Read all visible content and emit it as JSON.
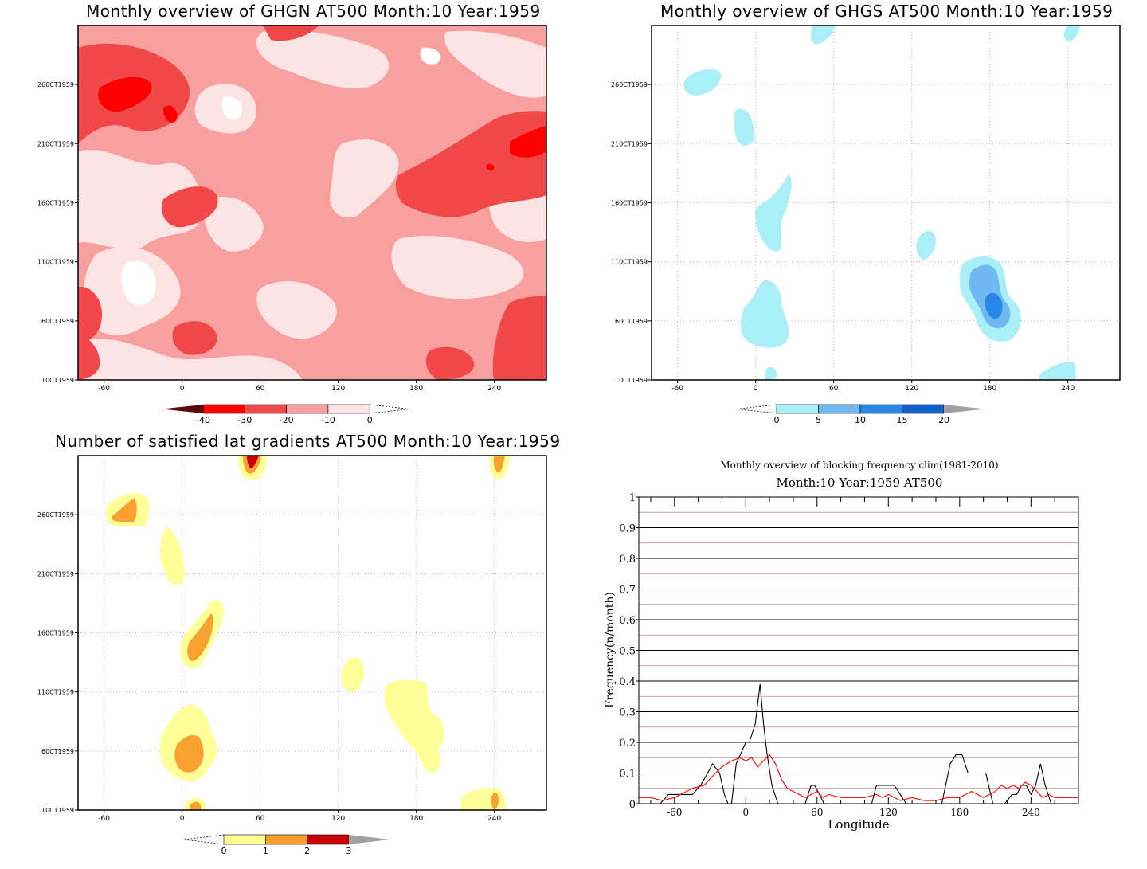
{
  "chart_data": [
    {
      "type": "heatmap",
      "title": "Monthly overview of GHGN AT500 Month:10 Year:1959",
      "x_ticks": [
        "-60",
        "0",
        "60",
        "120",
        "180",
        "240"
      ],
      "x_tick_values": [
        -60,
        0,
        60,
        120,
        180,
        240
      ],
      "xlim": [
        -80,
        280
      ],
      "y_ticks": [
        "10CT1959",
        "60CT1959",
        "110CT1959",
        "160CT1959",
        "210CT1959",
        "260CT1959"
      ],
      "y_tick_values": [
        1,
        6,
        11,
        16,
        21,
        26
      ],
      "ylim": [
        1,
        31
      ],
      "grid": false,
      "colorbar": {
        "labels": [
          "-40",
          "-30",
          "-20",
          "-10",
          "0"
        ],
        "colors": [
          "#5a0a0a",
          "#ff0000",
          "#f04848",
          "#f8a0a0",
          "#fde4e4",
          "#ffffff"
        ]
      },
      "levels": [
        {
          "value": "0 to -10",
          "color": "#fde4e4"
        },
        {
          "value": "-10 to -20",
          "color": "#f8a0a0"
        },
        {
          "value": "-20 to -30",
          "color": "#f04848"
        },
        {
          "value": "-30 to -40",
          "color": "#ff0000"
        }
      ]
    },
    {
      "type": "heatmap",
      "title": "Monthly overview of GHGS AT500 Month:10 Year:1959",
      "x_ticks": [
        "-60",
        "0",
        "60",
        "120",
        "180",
        "240"
      ],
      "x_tick_values": [
        -60,
        0,
        60,
        120,
        180,
        240
      ],
      "xlim": [
        -80,
        280
      ],
      "y_ticks": [
        "10CT1959",
        "60CT1959",
        "110CT1959",
        "160CT1959",
        "210CT1959",
        "260CT1959"
      ],
      "y_tick_values": [
        1,
        6,
        11,
        16,
        21,
        26
      ],
      "ylim": [
        1,
        31
      ],
      "grid": true,
      "colorbar": {
        "labels": [
          "0",
          "5",
          "10",
          "15",
          "20"
        ],
        "colors": [
          "#ffffff",
          "#aaeef8",
          "#70b8f0",
          "#2888e8",
          "#1060d0",
          "#a0a0a0"
        ]
      }
    },
    {
      "type": "heatmap",
      "title": "Number of satisfied lat gradients AT500 Month:10 Year:1959",
      "x_ticks": [
        "-60",
        "0",
        "60",
        "120",
        "180",
        "240"
      ],
      "x_tick_values": [
        -60,
        0,
        60,
        120,
        180,
        240
      ],
      "xlim": [
        -80,
        280
      ],
      "y_ticks": [
        "10CT1959",
        "60CT1959",
        "110CT1959",
        "160CT1959",
        "210CT1959",
        "260CT1959"
      ],
      "y_tick_values": [
        1,
        6,
        11,
        16,
        21,
        26
      ],
      "ylim": [
        1,
        31
      ],
      "grid": true,
      "colorbar": {
        "labels": [
          "0",
          "1",
          "2",
          "3"
        ],
        "colors": [
          "#ffffff",
          "#ffff98",
          "#f8a030",
          "#c80000",
          "#a0a0a0"
        ]
      }
    },
    {
      "type": "line",
      "title": "Monthly overview of blocking frequency clim(1981-2010)",
      "subtitle": "Month:10 Year:1959  AT500",
      "xlabel": "Longitude",
      "ylabel": "Frequency(n/month)",
      "xlim": [
        -90,
        280
      ],
      "ylim": [
        0,
        1
      ],
      "x_ticks": [
        "-60",
        "0",
        "60",
        "120",
        "180",
        "240"
      ],
      "x_tick_values": [
        -60,
        0,
        60,
        120,
        180,
        240
      ],
      "y_ticks": [
        "0",
        "0.1",
        "0.2",
        "0.3",
        "0.4",
        "0.5",
        "0.6",
        "0.7",
        "0.8",
        "0.9",
        "1"
      ],
      "y_tick_values": [
        0,
        0.1,
        0.2,
        0.3,
        0.4,
        0.5,
        0.6,
        0.7,
        0.8,
        0.9,
        1
      ],
      "series": [
        {
          "color": "#000000",
          "x": [
            -90,
            -80,
            -72,
            -65,
            -55,
            -45,
            -38,
            -32,
            -28,
            -22,
            -18,
            -15,
            -12,
            -8,
            0,
            3,
            8,
            12,
            15,
            18,
            22,
            27,
            32,
            38,
            42,
            45,
            50,
            55,
            58,
            62,
            66,
            70,
            75,
            80,
            85,
            90,
            100,
            106,
            110,
            115,
            125,
            130,
            135,
            140,
            145,
            150,
            155,
            158,
            162,
            165,
            172,
            177,
            182,
            187,
            195,
            202,
            208,
            212,
            218,
            224,
            228,
            232,
            236,
            240,
            244,
            248,
            252,
            257,
            262,
            268,
            275,
            280
          ],
          "y": [
            0,
            0,
            0,
            0.03,
            0.03,
            0.03,
            0.06,
            0.1,
            0.13,
            0.1,
            0.03,
            0,
            0,
            0.13,
            0.2,
            0.2,
            0.26,
            0.39,
            0.26,
            0.16,
            0.06,
            0,
            0,
            0,
            0,
            0,
            0,
            0.06,
            0.06,
            0.03,
            0,
            0,
            0,
            0,
            0,
            0,
            0,
            0,
            0.06,
            0.06,
            0.06,
            0.03,
            0,
            0,
            0,
            0,
            0,
            0,
            0,
            0,
            0.13,
            0.16,
            0.16,
            0.1,
            0.1,
            0.1,
            0,
            0,
            0,
            0.03,
            0.03,
            0.06,
            0.06,
            0.03,
            0.06,
            0.13,
            0.06,
            0,
            0,
            0,
            0,
            0
          ]
        },
        {
          "color": "#ff0000",
          "x": [
            -90,
            -80,
            -70,
            -60,
            -50,
            -45,
            -35,
            -28,
            -20,
            -12,
            -5,
            0,
            5,
            10,
            15,
            20,
            25,
            30,
            35,
            40,
            45,
            50,
            55,
            60,
            65,
            70,
            80,
            90,
            100,
            110,
            115,
            120,
            125,
            130,
            140,
            150,
            160,
            170,
            180,
            185,
            190,
            195,
            200,
            210,
            215,
            220,
            225,
            230,
            235,
            240,
            245,
            250,
            255,
            260,
            270,
            280
          ],
          "y": [
            0.02,
            0.02,
            0.01,
            0.02,
            0.04,
            0.05,
            0.06,
            0.09,
            0.12,
            0.14,
            0.15,
            0.14,
            0.15,
            0.12,
            0.14,
            0.16,
            0.13,
            0.08,
            0.05,
            0.04,
            0.03,
            0.02,
            0.03,
            0.04,
            0.02,
            0.03,
            0.02,
            0.02,
            0.02,
            0.03,
            0.02,
            0.03,
            0.02,
            0.01,
            0.02,
            0.01,
            0.01,
            0.02,
            0.02,
            0.03,
            0.04,
            0.03,
            0.02,
            0.04,
            0.06,
            0.05,
            0.06,
            0.05,
            0.07,
            0.06,
            0.04,
            0.02,
            0.03,
            0.02,
            0.02,
            0.02
          ]
        }
      ]
    }
  ]
}
